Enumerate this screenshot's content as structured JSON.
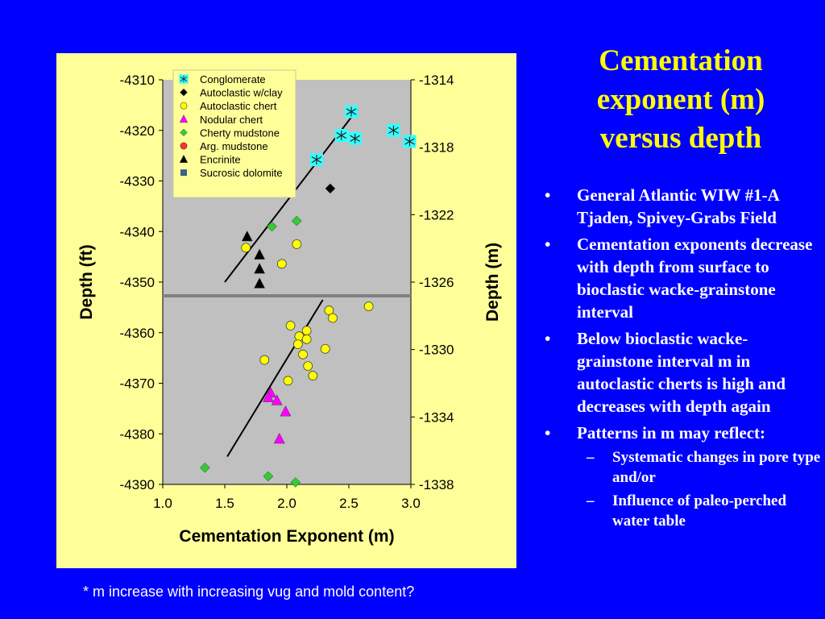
{
  "slide": {
    "title_lines": [
      "Cementation",
      "exponent (m)",
      "versus depth"
    ],
    "bullets": [
      {
        "text": "General Atlantic WIW #1-A Tjaden, Spivey-Grabs Field"
      },
      {
        "text": "Cementation exponents decrease with depth from surface to bioclastic wacke-grainstone interval"
      },
      {
        "text": "Below bioclastic wacke-grainstone interval m in autoclastic cherts is high and decreases with depth again"
      },
      {
        "text": "Patterns in m may reflect:",
        "sub": [
          "Systematic changes in pore type and/or",
          "Influence of paleo-perched water table"
        ]
      }
    ],
    "bullet_glyph": "•",
    "sub_bullet_glyph": "–",
    "footnote": "*  m increase with increasing vug and mold content?"
  },
  "chart_data": {
    "type": "scatter",
    "xlabel": "Cementation Exponent (m)",
    "ylabel": "Depth (ft)",
    "ylabel_right": "Depth (m)",
    "xlim": [
      1.0,
      3.0
    ],
    "ylim": [
      -4390,
      -4310
    ],
    "ylim_right": [
      -1338,
      -1314
    ],
    "x_ticks": [
      "1.0",
      "1.5",
      "2.0",
      "2.5",
      "3.0"
    ],
    "y_ticks": [
      "-4310",
      "-4320",
      "-4330",
      "-4340",
      "-4350",
      "-4360",
      "-4370",
      "-4380",
      "-4390"
    ],
    "y_ticks_right": [
      "-1314",
      "-1318",
      "-1322",
      "-1326",
      "-1330",
      "-1334",
      "-1338"
    ],
    "legend_position": "top-left",
    "plot_background": "#c0c0c0",
    "series": [
      {
        "name": "Conglomerate",
        "marker": "asterisk-square",
        "color": "#33ffff",
        "points": [
          [
            2.52,
            -4316.3
          ],
          [
            2.44,
            -4321.0
          ],
          [
            2.55,
            -4321.6
          ],
          [
            2.86,
            -4320.0
          ],
          [
            2.99,
            -4322.2
          ],
          [
            2.24,
            -4325.8
          ]
        ]
      },
      {
        "name": "Autoclastic w/clay",
        "marker": "diamond",
        "color": "#000000",
        "points": [
          [
            2.35,
            -4331.5
          ]
        ]
      },
      {
        "name": "Autoclastic chert",
        "marker": "circle",
        "color": "#ffff00",
        "points": [
          [
            1.67,
            -4343.2
          ],
          [
            2.08,
            -4342.5
          ],
          [
            1.96,
            -4346.4
          ],
          [
            2.66,
            -4354.8
          ],
          [
            2.34,
            -4355.6
          ],
          [
            2.37,
            -4357.1
          ],
          [
            2.03,
            -4358.6
          ],
          [
            2.16,
            -4359.6
          ],
          [
            2.1,
            -4360.7
          ],
          [
            2.16,
            -4361.3
          ],
          [
            2.09,
            -4362.3
          ],
          [
            2.13,
            -4364.3
          ],
          [
            2.31,
            -4363.2
          ],
          [
            1.82,
            -4365.4
          ],
          [
            2.17,
            -4366.6
          ],
          [
            2.21,
            -4368.5
          ],
          [
            2.01,
            -4369.5
          ]
        ]
      },
      {
        "name": "Nodular chert",
        "marker": "triangle",
        "color": "#ff00ff",
        "points": [
          [
            1.87,
            -4371.9
          ],
          [
            1.85,
            -4372.8
          ],
          [
            1.92,
            -4373.4
          ],
          [
            1.99,
            -4375.6
          ],
          [
            1.94,
            -4381.0
          ]
        ]
      },
      {
        "name": "Cherty mudstone",
        "marker": "diamond",
        "color": "#33cc33",
        "points": [
          [
            1.88,
            -4339.0
          ],
          [
            2.08,
            -4337.9
          ],
          [
            1.34,
            -4386.7
          ],
          [
            1.85,
            -4388.4
          ],
          [
            2.07,
            -4389.6
          ]
        ]
      },
      {
        "name": "Arg. mudstone",
        "marker": "circle",
        "color": "#ff3333",
        "points": []
      },
      {
        "name": "Encrinite",
        "marker": "triangle",
        "color": "#000000",
        "points": [
          [
            1.68,
            -4341.0
          ],
          [
            1.78,
            -4344.6
          ],
          [
            1.78,
            -4347.4
          ],
          [
            1.78,
            -4350.3
          ]
        ]
      },
      {
        "name": "Sucrosic dolomite",
        "marker": "square",
        "color": "#336699",
        "points": []
      }
    ],
    "trend_lines": [
      {
        "from": [
          1.5,
          -4350.0
        ],
        "to": [
          2.57,
          -4315.8
        ]
      },
      {
        "from": [
          1.52,
          -4384.5
        ],
        "to": [
          2.29,
          -4353.5
        ]
      }
    ],
    "reference_line": {
      "depth": -4352.7,
      "color": "#808080"
    }
  }
}
